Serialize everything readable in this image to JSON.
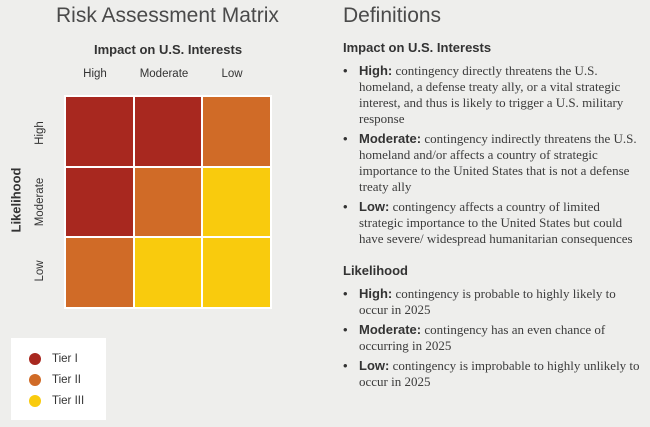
{
  "colors": {
    "tier1": "#a8281f",
    "tier2": "#d06b27",
    "tier3": "#f9cb0d"
  },
  "matrix": {
    "title": "Risk Assessment Matrix",
    "x_axis_title": "Impact on U.S. Interests",
    "y_axis_title": "Likelihood",
    "columns": [
      "High",
      "Moderate",
      "Low"
    ],
    "rows": [
      "High",
      "Moderate",
      "Low"
    ],
    "cell_tiers": [
      [
        1,
        1,
        2
      ],
      [
        1,
        2,
        3
      ],
      [
        2,
        3,
        3
      ]
    ]
  },
  "legend": [
    {
      "label": "Tier I",
      "color": "#a8281f"
    },
    {
      "label": "Tier II",
      "color": "#d06b27"
    },
    {
      "label": "Tier III",
      "color": "#f9cb0d"
    }
  ],
  "definitions": {
    "title": "Definitions",
    "impact": {
      "heading": "Impact on U.S. Interests",
      "items": [
        {
          "term": "High:",
          "text": " contingency directly threatens the U.S. homeland, a defense treaty ally, or a vital strategic interest, and thus is likely to trigger a U.S. military response"
        },
        {
          "term": "Moderate:",
          "text": " contingency indirectly threatens the U.S. homeland and/or affects a country of strategic importance to the United States that is not a defense treaty ally"
        },
        {
          "term": "Low:",
          "text": " contingency affects a country of limited strategic importance to the United States but could have severe/ widespread humanitarian consequences"
        }
      ]
    },
    "likelihood": {
      "heading": "Likelihood",
      "items": [
        {
          "term": "High:",
          "text": " contingency is probable to highly likely to occur in 2025"
        },
        {
          "term": "Moderate:",
          "text": " contingency has an even chance of occurring in 2025"
        },
        {
          "term": "Low:",
          "text": " contingency is improbable to highly unlikely to occur in 2025"
        }
      ]
    }
  }
}
